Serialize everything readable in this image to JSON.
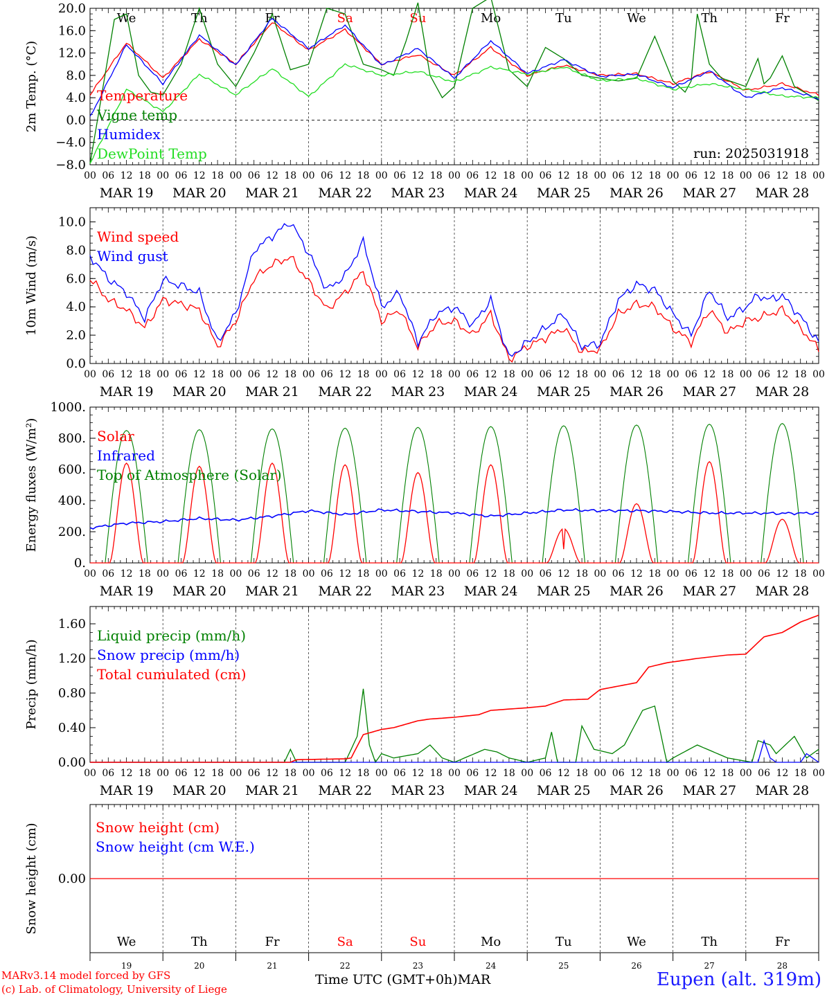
{
  "run_label": "run: 2025031918",
  "footer": {
    "model_line": "MARv3.14 model forced by GFS",
    "copyright_line": "(c) Lab. of Climatology, University of Liege",
    "location": "Eupen (alt. 319m)",
    "time_axis_label": "Time UTC (GMT+0h)",
    "month_label": "MAR"
  },
  "colors": {
    "red": "#ff0000",
    "blue": "#0000ff",
    "green": "#008000",
    "lightgreen": "#22dd22",
    "weekend": "#ff0000"
  },
  "chart_data": {
    "type": "line",
    "days": [
      {
        "short": "We",
        "date": "MAR 19",
        "num": "19",
        "weekend": false
      },
      {
        "short": "Th",
        "date": "MAR 20",
        "num": "20",
        "weekend": false
      },
      {
        "short": "Fr",
        "date": "MAR 21",
        "num": "21",
        "weekend": false
      },
      {
        "short": "Sa",
        "date": "MAR 22",
        "num": "22",
        "weekend": true
      },
      {
        "short": "Su",
        "date": "MAR 23",
        "num": "23",
        "weekend": true
      },
      {
        "short": "Mo",
        "date": "MAR 24",
        "num": "24",
        "weekend": false
      },
      {
        "short": "Tu",
        "date": "MAR 25",
        "num": "25",
        "weekend": false
      },
      {
        "short": "We",
        "date": "MAR 26",
        "num": "26",
        "weekend": false
      },
      {
        "short": "Th",
        "date": "MAR 27",
        "num": "27",
        "weekend": false
      },
      {
        "short": "Fr",
        "date": "MAR 28",
        "num": "28",
        "weekend": false
      }
    ],
    "hour_ticks": [
      "00",
      "06",
      "12",
      "18"
    ],
    "end_tick": "00",
    "panels": [
      {
        "id": "temp",
        "ylabel": "2m Temp. (°C)",
        "ylim": [
          -8,
          20
        ],
        "yticks": [
          -8,
          -4,
          0,
          4,
          8,
          12,
          16,
          20
        ],
        "tick_labels": [
          "−8.0",
          "−4.0",
          "0.0",
          "4.0",
          "8.0",
          "12.0",
          "16.0",
          "20.0"
        ],
        "ref_line": 0,
        "show_day_names": true,
        "series": [
          {
            "name": "Temperature",
            "color": "red",
            "x": [
              0,
              12,
              24,
              36,
              48,
              60,
              72,
              84,
              96,
              108,
              120,
              132,
              144,
              156,
              168,
              180,
              192,
              204,
              216,
              228,
              240
            ],
            "y": [
              4.5,
              13.8,
              7.5,
              14.5,
              10.0,
              17.5,
              12.5,
              16.2,
              10.0,
              11.7,
              8.0,
              13.0,
              8.0,
              9.8,
              8.0,
              8.3,
              6.5,
              8.7,
              5.3,
              6.5,
              4.5
            ]
          },
          {
            "name": "Vigne temp",
            "color": "green",
            "x": [
              0,
              4,
              8,
              12,
              16,
              20,
              24,
              30,
              36,
              42,
              48,
              54,
              60,
              66,
              72,
              78,
              84,
              90,
              96,
              100,
              104,
              108,
              112,
              116,
              120,
              126,
              132,
              138,
              144,
              150,
              156,
              162,
              168,
              174,
              180,
              186,
              192,
              196,
              198,
              200,
              204,
              208,
              216,
              220,
              222,
              224,
              228,
              232,
              240
            ],
            "y": [
              -7.8,
              5,
              18,
              19,
              8,
              5,
              4.5,
              10,
              20,
              10,
              6,
              12,
              19,
              9,
              10,
              20,
              19,
              10,
              9,
              8,
              14,
              21,
              8,
              4,
              6,
              20,
              22,
              9,
              6,
              13,
              11,
              8,
              7.5,
              7,
              7.5,
              15,
              7,
              5,
              7,
              19,
              10,
              7.5,
              6,
              11,
              6.5,
              7.5,
              11.5,
              6,
              3.5
            ]
          },
          {
            "name": "Humidex",
            "color": "blue",
            "x": [
              0,
              12,
              24,
              36,
              48,
              60,
              72,
              84,
              96,
              108,
              120,
              132,
              144,
              156,
              168,
              180,
              192,
              204,
              216,
              228,
              240
            ],
            "y": [
              0.5,
              13.5,
              6.5,
              15.2,
              9.8,
              18.2,
              12.8,
              17.0,
              9.8,
              12.8,
              7.5,
              14.2,
              8.3,
              10.8,
              7.8,
              8.2,
              5.8,
              8.8,
              4.0,
              5.8,
              3.8
            ]
          },
          {
            "name": "DewPoint Temp",
            "color": "lightgreen",
            "x": [
              0,
              12,
              24,
              36,
              48,
              60,
              72,
              84,
              96,
              108,
              120,
              132,
              144,
              156,
              168,
              180,
              192,
              204,
              216,
              228,
              240
            ],
            "y": [
              -7.8,
              5.5,
              1.5,
              8.2,
              4.5,
              9.2,
              4.2,
              10.0,
              8.0,
              8.7,
              6.8,
              9.5,
              8.2,
              9.5,
              7.0,
              7.5,
              5.5,
              6.5,
              5.5,
              4.3,
              4.0
            ]
          }
        ]
      },
      {
        "id": "wind",
        "ylabel": "10m Wind (m/s)",
        "ylim": [
          0,
          11
        ],
        "yticks": [
          0,
          2,
          4,
          6,
          8,
          10
        ],
        "tick_labels": [
          "0.0",
          "2.0",
          "4.0",
          "6.0",
          "8.0",
          "10.0"
        ],
        "ref_line": 5,
        "series": [
          {
            "name": "Wind speed",
            "color": "red",
            "x": [
              0,
              6,
              12,
              18,
              24,
              30,
              36,
              42,
              48,
              54,
              60,
              66,
              72,
              78,
              84,
              90,
              96,
              102,
              108,
              114,
              120,
              126,
              132,
              138,
              144,
              150,
              156,
              162,
              168,
              174,
              180,
              186,
              192,
              198,
              204,
              210,
              216,
              220,
              224,
              228,
              234,
              240
            ],
            "y": [
              6.0,
              4.5,
              3.8,
              2.5,
              4.5,
              4.2,
              3.8,
              1.2,
              3.0,
              6.0,
              7.0,
              7.5,
              5.8,
              3.8,
              5.0,
              6.5,
              3.0,
              3.8,
              1.2,
              2.8,
              3.0,
              2.0,
              3.5,
              0.3,
              1.2,
              1.8,
              2.5,
              0.8,
              1.0,
              3.5,
              4.2,
              4.0,
              2.5,
              1.5,
              3.8,
              2.2,
              3.0,
              3.2,
              3.5,
              3.8,
              2.5,
              1.0
            ]
          },
          {
            "name": "Wind gust",
            "color": "blue",
            "x": [
              0,
              6,
              12,
              18,
              24,
              30,
              36,
              42,
              48,
              54,
              60,
              66,
              72,
              78,
              84,
              90,
              96,
              102,
              108,
              114,
              120,
              126,
              132,
              138,
              144,
              150,
              156,
              162,
              168,
              174,
              180,
              186,
              192,
              198,
              204,
              210,
              216,
              220,
              224,
              228,
              234,
              240
            ],
            "y": [
              7.6,
              6.0,
              5.0,
              3.2,
              5.9,
              5.5,
              5.0,
              1.5,
              3.5,
              8.0,
              9.0,
              10.0,
              7.8,
              5.2,
              6.2,
              8.6,
              4.0,
              5.0,
              1.5,
              3.5,
              4.0,
              2.7,
              4.5,
              0.4,
              1.5,
              2.5,
              3.5,
              1.2,
              1.4,
              4.5,
              5.6,
              5.2,
              3.5,
              2.0,
              5.2,
              3.2,
              4.0,
              4.8,
              4.5,
              4.8,
              3.3,
              1.5
            ]
          }
        ]
      },
      {
        "id": "energy",
        "ylabel": "Energy fluxes (W/m²)",
        "ylim": [
          0,
          1000
        ],
        "yticks": [
          0,
          200,
          400,
          600,
          800,
          1000
        ],
        "tick_labels": [
          "0.",
          "200.",
          "400.",
          "600.",
          "800.",
          "1000."
        ],
        "ref_line": null,
        "peaks": {
          "toa": [
            850,
            855,
            860,
            865,
            870,
            875,
            880,
            885,
            890,
            895
          ],
          "solar": [
            640,
            620,
            640,
            630,
            580,
            630,
            220,
            380,
            650,
            280
          ]
        },
        "series": [
          {
            "name": "Solar",
            "color": "red"
          },
          {
            "name": "Infrared",
            "color": "blue",
            "x": [
              0,
              12,
              24,
              36,
              48,
              60,
              72,
              84,
              96,
              108,
              120,
              132,
              144,
              156,
              168,
              180,
              192,
              204,
              216,
              228,
              240
            ],
            "y": [
              225,
              255,
              265,
              285,
              275,
              300,
              335,
              310,
              340,
              330,
              320,
              300,
              320,
              340,
              335,
              335,
              330,
              320,
              320,
              318,
              320
            ]
          },
          {
            "name": "Top of Atmosphere (Solar)",
            "color": "green"
          }
        ]
      },
      {
        "id": "precip",
        "ylabel": "Precip (mm/h)",
        "ylim": [
          0,
          1.8
        ],
        "yticks": [
          0,
          0.4,
          0.8,
          1.2,
          1.6
        ],
        "tick_labels": [
          "0.00",
          "0.40",
          "0.80",
          "1.20",
          "1.60"
        ],
        "ref_line": null,
        "series": [
          {
            "name": "Liquid precip (mm/h)",
            "color": "green",
            "x": [
              0,
              64,
              66,
              68,
              84,
              88,
              90,
              92,
              94,
              96,
              100,
              108,
              112,
              116,
              120,
              130,
              134,
              138,
              144,
              150,
              152,
              154,
              160,
              162,
              166,
              172,
              176,
              182,
              186,
              190,
              192,
              200,
              210,
              218,
              220,
              224,
              226,
              232,
              236,
              240
            ],
            "y": [
              0,
              0,
              0.15,
              0,
              0,
              0.3,
              0.85,
              0.2,
              0,
              0.1,
              0.05,
              0.1,
              0.2,
              0.05,
              0,
              0.15,
              0.12,
              0.05,
              0,
              0.05,
              0.35,
              0,
              0,
              0.42,
              0.15,
              0.1,
              0.2,
              0.6,
              0.65,
              0,
              0.05,
              0.2,
              0.05,
              0,
              0.25,
              0.2,
              0.1,
              0.3,
              0.05,
              0.15
            ]
          },
          {
            "name": "Snow precip (mm/h)",
            "color": "blue",
            "x": [
              0,
              220,
              222,
              224,
              226,
              234,
              236,
              240
            ],
            "y": [
              0,
              0,
              0.25,
              0.05,
              0,
              0,
              0.1,
              0
            ]
          },
          {
            "name": "Total cumulated (cm)",
            "color": "red",
            "x": [
              0,
              66,
              68,
              84,
              86,
              90,
              96,
              100,
              108,
              112,
              120,
              128,
              132,
              140,
              144,
              150,
              156,
              164,
              168,
              180,
              184,
              190,
              192,
              200,
              210,
              216,
              222,
              228,
              234,
              240
            ],
            "y": [
              0,
              0,
              0.03,
              0.04,
              0.05,
              0.32,
              0.38,
              0.4,
              0.48,
              0.5,
              0.52,
              0.55,
              0.6,
              0.62,
              0.63,
              0.65,
              0.72,
              0.73,
              0.84,
              0.92,
              1.1,
              1.15,
              1.16,
              1.2,
              1.24,
              1.25,
              1.45,
              1.5,
              1.62,
              1.7
            ]
          }
        ]
      },
      {
        "id": "snow",
        "ylabel": "Snow height (cm)",
        "ylim": [
          -1,
          1
        ],
        "yticks": [
          0
        ],
        "tick_labels": [
          "0.00"
        ],
        "ref_line": null,
        "show_bottom_day_names": true,
        "series": [
          {
            "name": "Snow height (cm)",
            "color": "red",
            "x": [
              0,
              240
            ],
            "y": [
              0,
              0
            ]
          },
          {
            "name": "Snow height (cm W.E.)",
            "color": "blue"
          }
        ]
      }
    ]
  }
}
